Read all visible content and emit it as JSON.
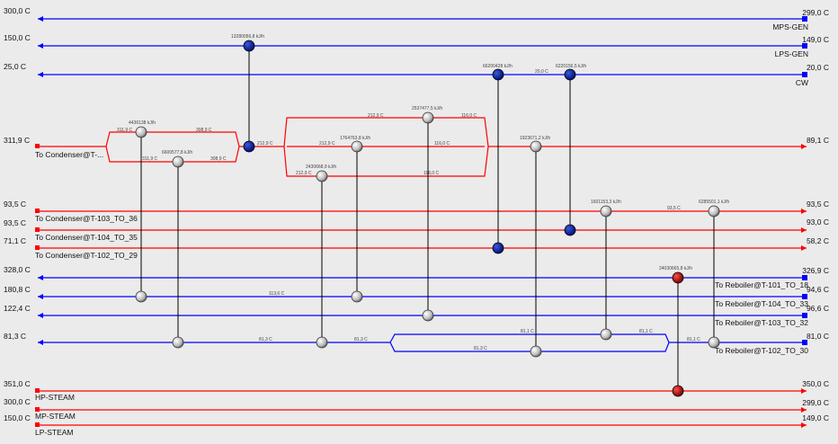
{
  "colors": {
    "hot": "#ff0000",
    "cold": "#0000ff",
    "node_blue": "#0000aa",
    "node_red": "#cc0000",
    "node_grey": "#d8d8d8",
    "bg": "#ebebeb"
  },
  "left_temps": [
    "300,0 C",
    "150,0 C",
    "25,0 C",
    "311,9 C",
    "93,5 C",
    "93,5 C",
    "71,1 C",
    "328,0 C",
    "180,8 C",
    "122,4 C",
    "81,3 C",
    "351,0 C",
    "300,0 C",
    "150,0 C"
  ],
  "right_temps": [
    "299,0 C",
    "149,0 C",
    "20,0 C",
    "89,1 C",
    "93,5 C",
    "93,0 C",
    "58,2 C",
    "326,9 C",
    "94,6 C",
    "96,6 C",
    "81,0 C",
    "350,0 C",
    "299,0 C",
    "149,0 C"
  ],
  "left_names": [
    "",
    "",
    "",
    "To Condenser@T-...",
    "To Condenser@T-103_TO_36",
    "To Condenser@T-104_TO_35",
    "To Condenser@T-102_TO_29",
    "",
    "",
    "",
    "",
    "HP-STEAM",
    "MP-STEAM",
    "LP-STEAM"
  ],
  "right_names": [
    "MPS-GEN",
    "LPS-GEN",
    "CW",
    "",
    "",
    "",
    "",
    "To Reboiler@T-101_TO_18",
    "To Reboiler@T-104_TO_33",
    "To Reboiler@T-103_TO_32",
    "To Reboiler@T-102_TO_30",
    "",
    "",
    ""
  ],
  "duties": [
    "13280056,8 kJ/h",
    "66200428 kJ/h",
    "6220156,5 kJ/h",
    "4436138 kJ/h",
    "6600577,8 kJ/h",
    "2537477,5 kJ/h",
    "1764763,8 kJ/h",
    "2430668,9 kJ/h",
    "1923671,2 kJ/h",
    "1601153,3 kJ/h",
    "6285501,1 kJ/h",
    "24030665,8 kJ/h"
  ],
  "small_temps": [
    "311,9 C",
    "308,9 C",
    "308,9 C",
    "311,9 C",
    "212,9 C",
    "212,9 C",
    "212,9 C",
    "212,9 C",
    "116,0 C",
    "116,0 C",
    "116,0 C",
    "20,0 C",
    "93,5 C",
    "81,3 C",
    "81,3 C",
    "81,3 C",
    "81,1 C",
    "81,1 C",
    "81,1 C",
    "113,6 C"
  ]
}
